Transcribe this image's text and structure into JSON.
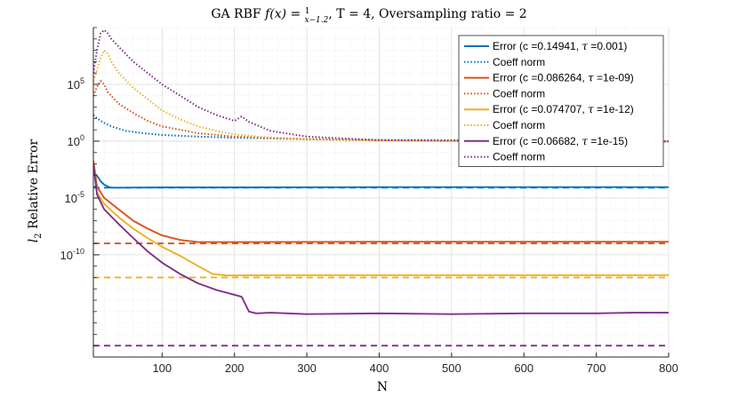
{
  "chart_data": {
    "type": "line",
    "title": "GA RBF f(x) = 1/(x−1.2), T = 4, Oversampling ratio = 2",
    "title_parts": {
      "prefix": "GA RBF ",
      "func": "f(x) = ",
      "frac_num": "1",
      "frac_den": "x−1.2",
      "suffix": ", T = 4, Oversampling ratio = 2"
    },
    "xlabel": "N",
    "ylabel": "l2 Relative Error",
    "ylabel_parts": {
      "main": "l",
      "sub": "2",
      "rest": " Relative Error"
    },
    "x_scale": "linear",
    "y_scale": "log",
    "xlim": [
      5,
      800
    ],
    "ylim": [
      1e-19,
      10000000000.0
    ],
    "x_ticks": [
      100,
      200,
      300,
      400,
      500,
      600,
      700,
      800
    ],
    "x_tick_labels": [
      "100",
      "200",
      "300",
      "400",
      "500",
      "600",
      "700",
      "800"
    ],
    "y_ticks": [
      {
        "value": 100000.0,
        "base": "10",
        "exp": "5"
      },
      {
        "value": 1.0,
        "base": "10",
        "exp": "0"
      },
      {
        "value": 1e-05,
        "base": "10",
        "exp": "-5"
      },
      {
        "value": 1e-10,
        "base": "10",
        "exp": "-10"
      }
    ],
    "grid": true,
    "legend_position": "top-right",
    "colors": {
      "blue": "#0072bd",
      "orange": "#d95319",
      "yellow": "#edb120",
      "purple": "#7e2f8e"
    },
    "series": [
      {
        "name": "Error (c =0.14941, τ =0.001)",
        "name_parts": {
          "prefix": "Error (c =0.14941, ",
          "tau": "τ",
          "suffix": " =0.001)"
        },
        "color": "#0072bd",
        "style": "solid",
        "points": [
          [
            5,
            0.002
          ],
          [
            10,
            0.0009
          ],
          [
            15,
            0.0003
          ],
          [
            20,
            0.00015
          ],
          [
            25,
            0.0001
          ],
          [
            30,
            8e-05
          ],
          [
            40,
            8e-05
          ],
          [
            100,
            8.5e-05
          ],
          [
            200,
            8.5e-05
          ],
          [
            400,
            9e-05
          ],
          [
            600,
            9e-05
          ],
          [
            800,
            9e-05
          ]
        ]
      },
      {
        "name": "Coeff norm",
        "color": "#0072bd",
        "style": "dotted",
        "points": [
          [
            5,
            200
          ],
          [
            10,
            100
          ],
          [
            20,
            40
          ],
          [
            30,
            20
          ],
          [
            50,
            8
          ],
          [
            75,
            5
          ],
          [
            100,
            3.5
          ],
          [
            150,
            2.5
          ],
          [
            200,
            2
          ],
          [
            300,
            1.5
          ],
          [
            400,
            1.3
          ],
          [
            500,
            1.2
          ],
          [
            600,
            1.1
          ],
          [
            800,
            1.0
          ]
        ]
      },
      {
        "name": "Error (c =0.086264, τ =1e-09)",
        "name_parts": {
          "prefix": "Error (c =0.086264, ",
          "tau": "τ",
          "suffix": " =1e-09)"
        },
        "color": "#d95319",
        "style": "solid",
        "points": [
          [
            5,
            0.02
          ],
          [
            10,
            0.0001
          ],
          [
            20,
            1e-05
          ],
          [
            40,
            1e-06
          ],
          [
            60,
            1e-07
          ],
          [
            80,
            2e-08
          ],
          [
            100,
            5e-09
          ],
          [
            125,
            2e-09
          ],
          [
            150,
            1.3e-09
          ],
          [
            200,
            1.3e-09
          ],
          [
            400,
            1.4e-09
          ],
          [
            600,
            1.4e-09
          ],
          [
            800,
            1.4e-09
          ]
        ]
      },
      {
        "name": "Coeff norm",
        "color": "#d95319",
        "style": "dotted",
        "points": [
          [
            5,
            10000
          ],
          [
            10,
            60000
          ],
          [
            15,
            200000
          ],
          [
            20,
            100000
          ],
          [
            25,
            20000
          ],
          [
            40,
            2000
          ],
          [
            60,
            300
          ],
          [
            80,
            60
          ],
          [
            100,
            20
          ],
          [
            150,
            5
          ],
          [
            200,
            2.5
          ],
          [
            300,
            1.5
          ],
          [
            400,
            1.2
          ],
          [
            500,
            1.1
          ],
          [
            600,
            1.0
          ],
          [
            800,
            0.9
          ]
        ]
      },
      {
        "name": "Error (c =0.074707, τ =1e-12)",
        "name_parts": {
          "prefix": "Error (c =0.074707, ",
          "tau": "τ",
          "suffix": " =1e-12)"
        },
        "color": "#edb120",
        "style": "solid",
        "points": [
          [
            5,
            0.01
          ],
          [
            10,
            3e-05
          ],
          [
            20,
            3e-06
          ],
          [
            40,
            2e-07
          ],
          [
            60,
            2e-08
          ],
          [
            80,
            3e-09
          ],
          [
            100,
            5e-10
          ],
          [
            125,
            8e-11
          ],
          [
            150,
            1e-11
          ],
          [
            170,
            2e-12
          ],
          [
            190,
            1.5e-12
          ],
          [
            250,
            1.6e-12
          ],
          [
            400,
            1.6e-12
          ],
          [
            600,
            1.6e-12
          ],
          [
            800,
            1.6e-12
          ]
        ]
      },
      {
        "name": "Coeff norm",
        "color": "#edb120",
        "style": "dotted",
        "points": [
          [
            5,
            200000
          ],
          [
            10,
            2000000
          ],
          [
            15,
            20000000
          ],
          [
            20,
            100000000
          ],
          [
            25,
            50000000
          ],
          [
            30,
            10000000
          ],
          [
            40,
            1000000
          ],
          [
            60,
            50000
          ],
          [
            80,
            5000
          ],
          [
            100,
            500
          ],
          [
            125,
            80
          ],
          [
            150,
            20
          ],
          [
            175,
            8
          ],
          [
            200,
            4
          ],
          [
            250,
            2
          ],
          [
            300,
            1.5
          ],
          [
            400,
            1.1
          ],
          [
            500,
            1.0
          ],
          [
            600,
            1.0
          ],
          [
            800,
            0.9
          ]
        ]
      },
      {
        "name": "Error (c =0.06682, τ =1e-15)",
        "name_parts": {
          "prefix": "Error (c =0.06682, ",
          "tau": "τ",
          "suffix": " =1e-15)"
        },
        "color": "#7e2f8e",
        "style": "solid",
        "points": [
          [
            5,
            0.01
          ],
          [
            10,
            2e-05
          ],
          [
            20,
            1e-06
          ],
          [
            40,
            5e-08
          ],
          [
            60,
            3e-09
          ],
          [
            80,
            2e-10
          ],
          [
            100,
            2e-11
          ],
          [
            125,
            2e-12
          ],
          [
            150,
            3e-13
          ],
          [
            175,
            8e-14
          ],
          [
            200,
            3e-14
          ],
          [
            210,
            2e-14
          ],
          [
            220,
            1e-15
          ],
          [
            230,
            7e-16
          ],
          [
            250,
            8e-16
          ],
          [
            300,
            6e-16
          ],
          [
            400,
            7e-16
          ],
          [
            500,
            6e-16
          ],
          [
            600,
            7e-16
          ],
          [
            700,
            7e-16
          ],
          [
            750,
            8e-16
          ],
          [
            800,
            8e-16
          ]
        ]
      },
      {
        "name": "Coeff norm",
        "color": "#7e2f8e",
        "style": "dotted",
        "points": [
          [
            5,
            1000000
          ],
          [
            10,
            100000000
          ],
          [
            15,
            3000000000
          ],
          [
            20,
            6000000000
          ],
          [
            25,
            3000000000
          ],
          [
            30,
            1000000000
          ],
          [
            40,
            200000000
          ],
          [
            60,
            10000000
          ],
          [
            80,
            1000000
          ],
          [
            100,
            100000
          ],
          [
            125,
            10000
          ],
          [
            150,
            1000
          ],
          [
            175,
            200
          ],
          [
            200,
            60
          ],
          [
            210,
            150
          ],
          [
            220,
            50
          ],
          [
            250,
            8
          ],
          [
            300,
            2.5
          ],
          [
            400,
            1.2
          ],
          [
            500,
            1.1
          ],
          [
            600,
            1.0
          ],
          [
            800,
            0.95
          ]
        ]
      }
    ],
    "reference_lines": [
      {
        "color": "#0072bd",
        "style": "dashed",
        "y": 8e-05
      },
      {
        "color": "#d95319",
        "style": "dashed",
        "y": 1e-09
      },
      {
        "color": "#edb120",
        "style": "dashed",
        "y": 1e-12
      },
      {
        "color": "#7e2f8e",
        "style": "dashed",
        "y": 1e-18
      }
    ]
  }
}
